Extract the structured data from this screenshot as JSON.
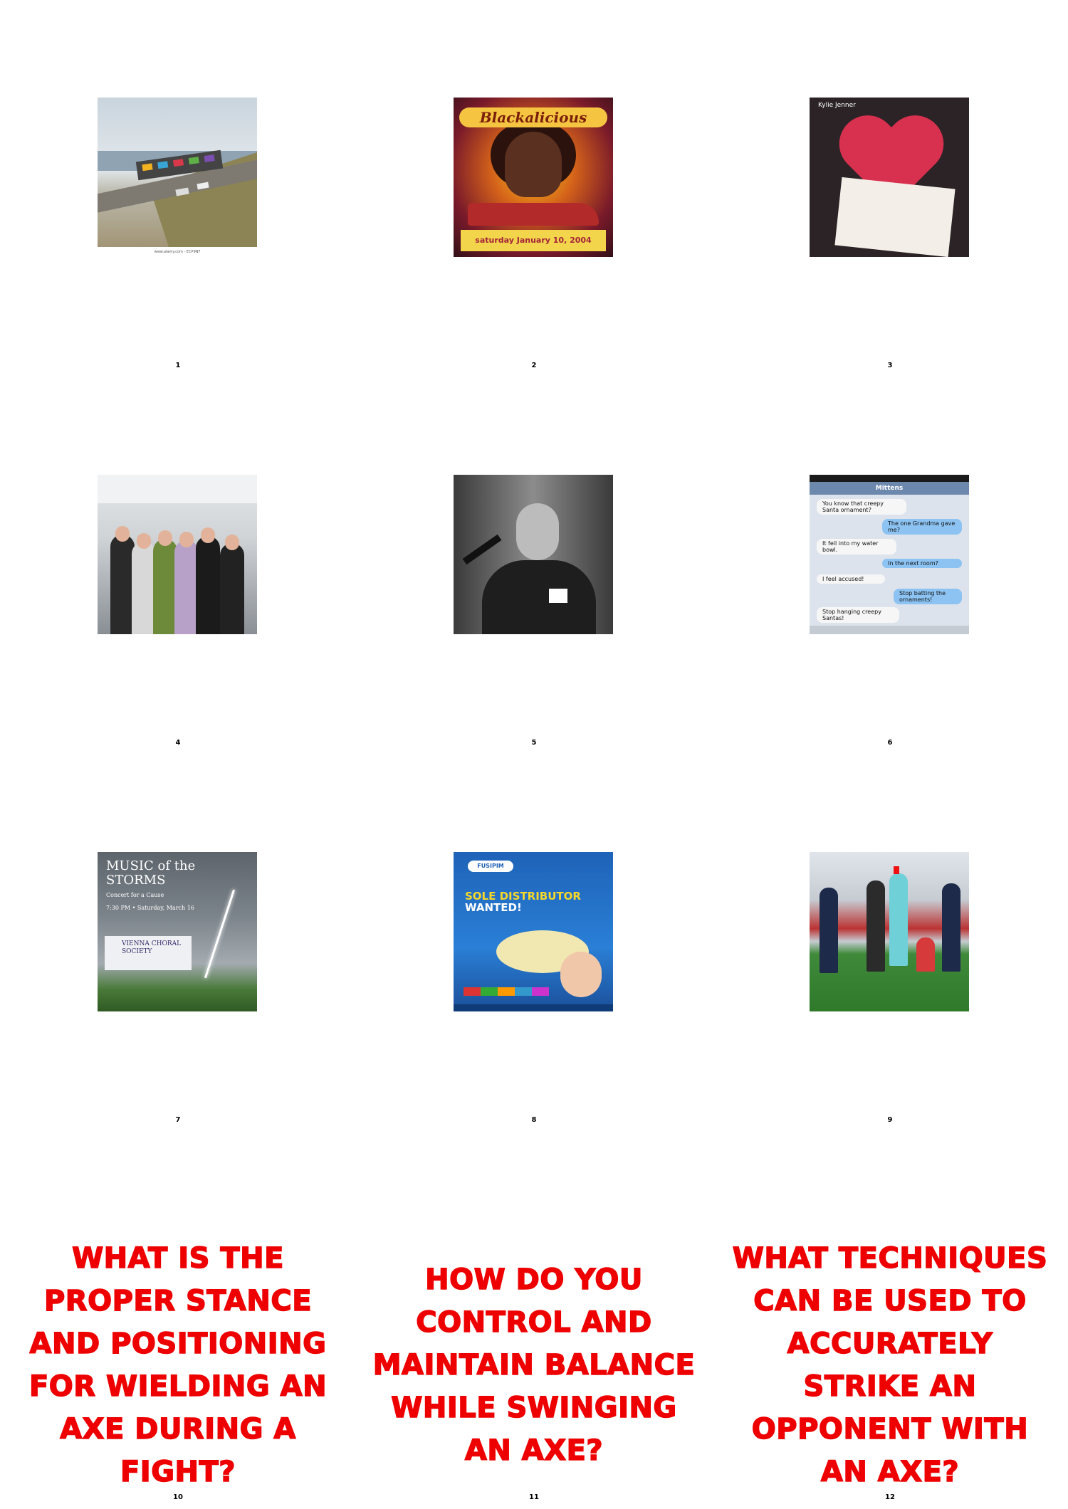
{
  "cells": [
    {
      "number": "1"
    },
    {
      "number": "2"
    },
    {
      "number": "3"
    },
    {
      "number": "4"
    },
    {
      "number": "5"
    },
    {
      "number": "6"
    },
    {
      "number": "7"
    },
    {
      "number": "8"
    },
    {
      "number": "9"
    },
    {
      "number": "10",
      "question": "WHAT IS THE PROPER STANCE AND POSITIONING FOR WIELDING AN AXE DURING A FIGHT?"
    },
    {
      "number": "11",
      "question": "HOW DO YOU CONTROL AND MAINTAIN BALANCE WHILE SWINGING AN AXE?"
    },
    {
      "number": "12",
      "question": "WHAT TECHNIQUES CAN BE USED TO ACCURATELY STRIKE AN OPPONENT WITH AN AXE?"
    }
  ],
  "thumbnails": {
    "t1": {
      "watermark": "www.alamy.com - ECP9NF"
    },
    "t2": {
      "title": "Blackalicious",
      "date": "saturday January 10, 2004"
    },
    "t3": {
      "name": "Kylie Jenner"
    },
    "t6": {
      "nav_title": "Mittens",
      "messages": [
        {
          "side": "in",
          "text": "You know that creepy Santa ornament?"
        },
        {
          "side": "out",
          "text": "The one Grandma gave me?"
        },
        {
          "side": "in",
          "text": "It fell into my water bowl."
        },
        {
          "side": "out",
          "text": "In the next room?"
        },
        {
          "side": "in",
          "text": "I feel accused!"
        },
        {
          "side": "out",
          "text": "Stop batting the ornaments!"
        },
        {
          "side": "in",
          "text": "Stop hanging creepy Santas!"
        }
      ]
    },
    "t7": {
      "title": "MUSIC of the STORMS",
      "subtitle": "Concert for a Cause",
      "time": "7:30 PM • Saturday, March 16",
      "society": "VIENNA CHORAL SOCIETY"
    },
    "t8": {
      "brand": "FUSIPIM",
      "head1": "SOLE DISTRIBUTOR",
      "head2": "WANTED!"
    }
  },
  "colors": {
    "question_text": "#ee0000",
    "background": "#ffffff"
  }
}
